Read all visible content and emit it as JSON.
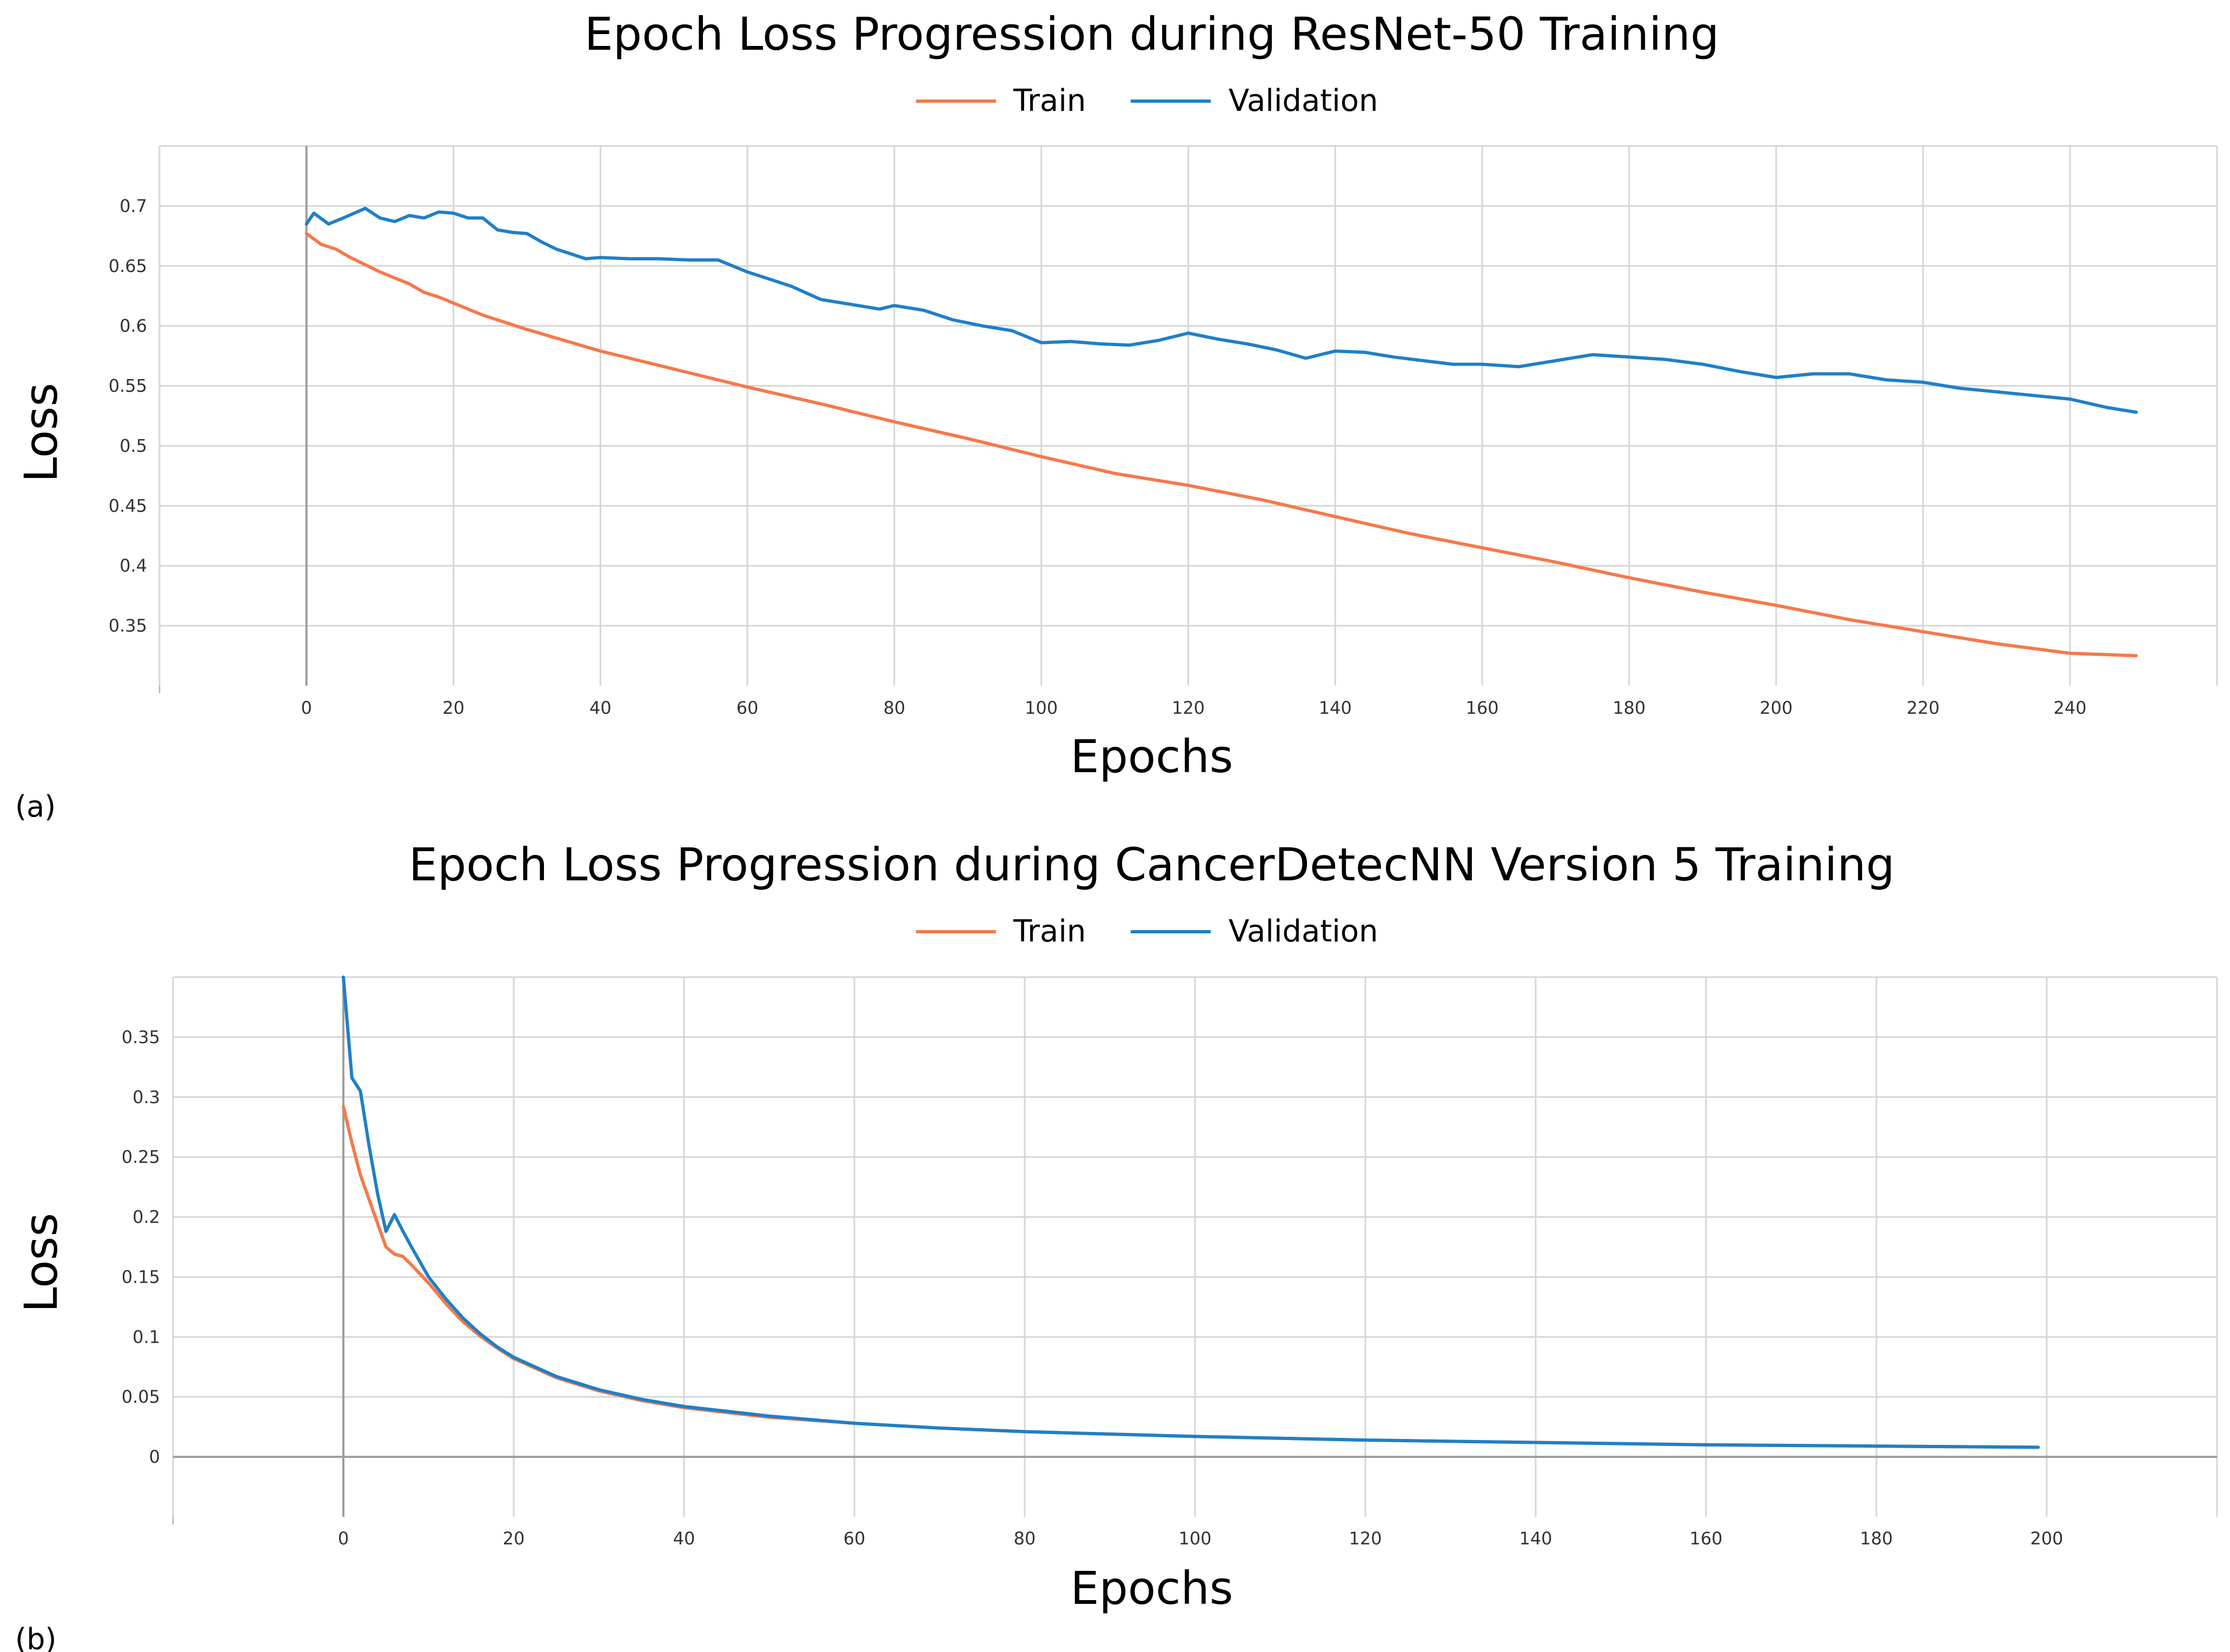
{
  "chart_data": [
    {
      "panel_label": "(a)",
      "type": "line",
      "title": "Epoch Loss Progression during ResNet-50 Training",
      "xlabel": "Epochs",
      "ylabel": "Loss",
      "xlim": [
        -20,
        260
      ],
      "ylim": [
        0.3,
        0.75
      ],
      "xticks": [
        0,
        20,
        40,
        60,
        80,
        100,
        120,
        140,
        160,
        180,
        200,
        220,
        240
      ],
      "yticks": [
        0.35,
        0.4,
        0.45,
        0.5,
        0.55,
        0.6,
        0.65,
        0.7
      ],
      "ytick_labels": [
        "0.35",
        "0.4",
        "0.45",
        "0.5",
        "0.55",
        "0.6",
        "0.65",
        "0.7"
      ],
      "grid": true,
      "legend": "top-center",
      "series": [
        {
          "name": "Train",
          "color": "#f5794a",
          "x": [
            0,
            2,
            4,
            6,
            8,
            10,
            12,
            14,
            16,
            18,
            20,
            22,
            24,
            26,
            28,
            30,
            40,
            50,
            60,
            70,
            80,
            90,
            100,
            110,
            120,
            130,
            140,
            150,
            160,
            170,
            180,
            190,
            200,
            210,
            220,
            230,
            240,
            249
          ],
          "y": [
            0.677,
            0.668,
            0.664,
            0.657,
            0.651,
            0.645,
            0.64,
            0.635,
            0.628,
            0.624,
            0.619,
            0.614,
            0.609,
            0.605,
            0.601,
            0.597,
            0.579,
            0.564,
            0.549,
            0.535,
            0.52,
            0.506,
            0.491,
            0.477,
            0.467,
            0.455,
            0.441,
            0.427,
            0.415,
            0.403,
            0.39,
            0.378,
            0.367,
            0.355,
            0.345,
            0.335,
            0.327,
            0.325
          ]
        },
        {
          "name": "Validation",
          "color": "#1f7fc8",
          "x": [
            0,
            1,
            3,
            5,
            8,
            10,
            12,
            14,
            16,
            18,
            20,
            22,
            24,
            26,
            28,
            30,
            32,
            34,
            36,
            38,
            40,
            44,
            48,
            52,
            56,
            60,
            62,
            66,
            70,
            74,
            78,
            80,
            84,
            88,
            92,
            96,
            100,
            104,
            108,
            112,
            116,
            120,
            124,
            128,
            132,
            136,
            140,
            144,
            148,
            152,
            156,
            160,
            165,
            170,
            175,
            180,
            185,
            190,
            195,
            200,
            205,
            210,
            215,
            220,
            225,
            230,
            235,
            240,
            245,
            249
          ],
          "y": [
            0.685,
            0.694,
            0.685,
            0.69,
            0.698,
            0.69,
            0.687,
            0.692,
            0.69,
            0.695,
            0.694,
            0.69,
            0.69,
            0.68,
            0.678,
            0.677,
            0.67,
            0.664,
            0.66,
            0.656,
            0.657,
            0.656,
            0.656,
            0.655,
            0.655,
            0.645,
            0.641,
            0.633,
            0.622,
            0.618,
            0.614,
            0.617,
            0.613,
            0.605,
            0.6,
            0.596,
            0.586,
            0.587,
            0.585,
            0.584,
            0.588,
            0.594,
            0.589,
            0.585,
            0.58,
            0.573,
            0.579,
            0.578,
            0.574,
            0.571,
            0.568,
            0.568,
            0.566,
            0.571,
            0.576,
            0.574,
            0.572,
            0.568,
            0.562,
            0.557,
            0.56,
            0.56,
            0.555,
            0.553,
            0.548,
            0.545,
            0.542,
            0.539,
            0.532,
            0.528
          ]
        }
      ]
    },
    {
      "panel_label": "(b)",
      "type": "line",
      "title": "Epoch Loss Progression during CancerDetecNN Version 5 Training",
      "xlabel": "Epochs",
      "ylabel": "Loss",
      "xlim": [
        -20,
        220
      ],
      "ylim": [
        -0.05,
        0.4
      ],
      "xticks": [
        0,
        20,
        40,
        60,
        80,
        100,
        120,
        140,
        160,
        180,
        200
      ],
      "yticks": [
        0,
        0.05,
        0.1,
        0.15,
        0.2,
        0.25,
        0.3,
        0.35
      ],
      "ytick_labels": [
        "0",
        "0.05",
        "0.1",
        "0.15",
        "0.2",
        "0.25",
        "0.3",
        "0.35"
      ],
      "grid": true,
      "legend": "top-center",
      "series": [
        {
          "name": "Train",
          "color": "#f5794a",
          "x": [
            0,
            1,
            2,
            3,
            4,
            5,
            6,
            7,
            8,
            10,
            12,
            14,
            16,
            18,
            20,
            25,
            30,
            35,
            40,
            50,
            60,
            70,
            80,
            90,
            100,
            120,
            140,
            160,
            180,
            199
          ],
          "y": [
            0.292,
            0.262,
            0.235,
            0.215,
            0.195,
            0.175,
            0.169,
            0.167,
            0.16,
            0.145,
            0.128,
            0.113,
            0.101,
            0.091,
            0.082,
            0.066,
            0.055,
            0.047,
            0.041,
            0.033,
            0.028,
            0.024,
            0.021,
            0.019,
            0.017,
            0.014,
            0.012,
            0.01,
            0.009,
            0.008
          ]
        },
        {
          "name": "Validation",
          "color": "#1f7fc8",
          "x": [
            0,
            1,
            2,
            3,
            4,
            5,
            6,
            7,
            8,
            10,
            12,
            14,
            16,
            18,
            20,
            25,
            30,
            35,
            40,
            50,
            60,
            70,
            80,
            90,
            100,
            120,
            140,
            160,
            180,
            199
          ],
          "y": [
            0.4,
            0.316,
            0.305,
            0.26,
            0.22,
            0.188,
            0.202,
            0.188,
            0.175,
            0.15,
            0.132,
            0.116,
            0.103,
            0.092,
            0.083,
            0.067,
            0.056,
            0.048,
            0.042,
            0.034,
            0.028,
            0.024,
            0.021,
            0.019,
            0.017,
            0.014,
            0.012,
            0.01,
            0.009,
            0.008
          ]
        }
      ]
    }
  ]
}
